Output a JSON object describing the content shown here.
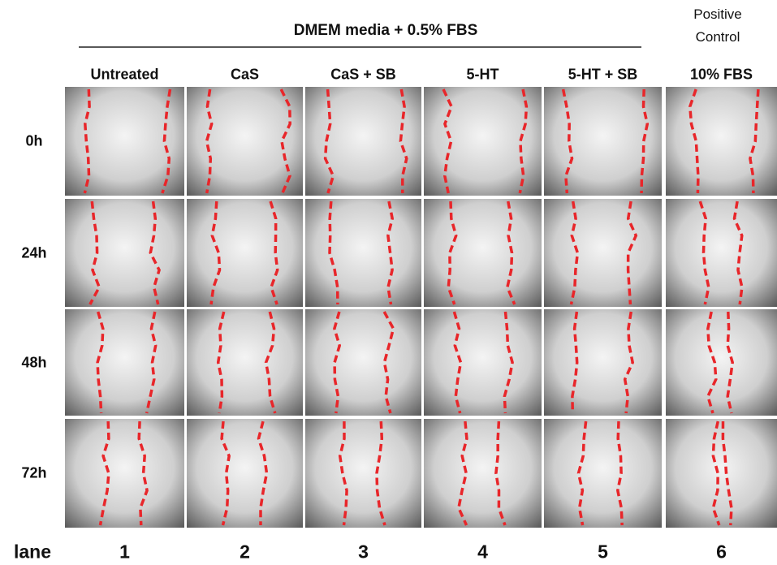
{
  "header": {
    "group_label": "DMEM media + 0.5% FBS",
    "positive_control_label": "Positive Control"
  },
  "columns": [
    "Untreated",
    "CaS",
    "CaS + SB",
    "5-HT",
    "5-HT + SB",
    "10% FBS"
  ],
  "rows": [
    "0h",
    "24h",
    "48h",
    "72h"
  ],
  "lanes": {
    "label": "lane",
    "numbers": [
      1,
      2,
      3,
      4,
      5,
      6
    ]
  }
}
